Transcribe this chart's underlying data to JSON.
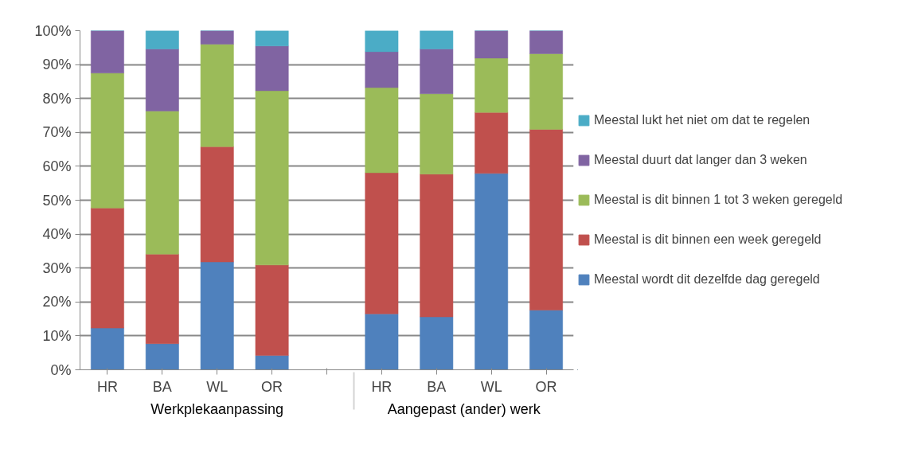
{
  "chart_data": {
    "type": "bar",
    "stacked": true,
    "categories": [
      "HR",
      "BA",
      "WL",
      "OR",
      null,
      "HR",
      "BA",
      "WL",
      "OR"
    ],
    "series": [
      {
        "name": "Meestal wordt dit dezelfde dag geregeld",
        "color": "#4f81bd",
        "values": [
          12.3,
          7.7,
          31.8,
          4.2,
          null,
          16.5,
          15.6,
          57.9,
          17.6
        ]
      },
      {
        "name": "Meestal is dit binnen een week geregeld",
        "color": "#c0504d",
        "values": [
          35.4,
          26.4,
          34.0,
          26.7,
          null,
          41.6,
          42.1,
          18.0,
          53.3
        ]
      },
      {
        "name": "Meestal is dit binnen 1 tot 3 weken geregeld",
        "color": "#9bbb59",
        "values": [
          39.8,
          42.2,
          30.2,
          51.4,
          null,
          25.1,
          23.7,
          16.0,
          22.3
        ]
      },
      {
        "name": "Meestal duurt dat langer dan 3 weken",
        "color": "#8064a2",
        "values": [
          12.5,
          18.3,
          4.0,
          13.2,
          null,
          10.6,
          13.2,
          8.1,
          6.8
        ]
      },
      {
        "name": "Meestal lukt het niet om dat te regelen",
        "color": "#4bacc6",
        "values": [
          0,
          5.4,
          0,
          4.5,
          null,
          6.2,
          5.4,
          0,
          0
        ]
      }
    ],
    "ylim": [
      0,
      100
    ],
    "yticks": [
      {
        "value": 0,
        "label": "0%"
      },
      {
        "value": 10,
        "label": "10%"
      },
      {
        "value": 20,
        "label": "20%"
      },
      {
        "value": 30,
        "label": "30%"
      },
      {
        "value": 40,
        "label": "40%"
      },
      {
        "value": 50,
        "label": "50%"
      },
      {
        "value": 60,
        "label": "60%"
      },
      {
        "value": 70,
        "label": "70%"
      },
      {
        "value": 80,
        "label": "80%"
      },
      {
        "value": 90,
        "label": "90%"
      },
      {
        "value": 100,
        "label": "100%"
      }
    ],
    "grid": "y",
    "legend": "right",
    "annotations": [
      "Werkplekaanpassing",
      "Aangepast (ander) werk"
    ]
  }
}
